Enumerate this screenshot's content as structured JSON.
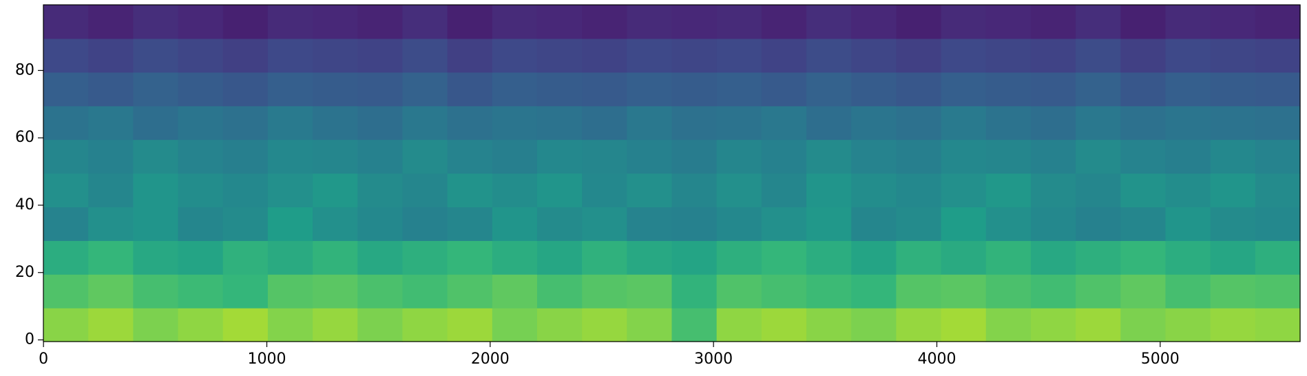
{
  "chart_data": {
    "type": "heatmap",
    "colormap": "viridis",
    "xlim": [
      -0.5,
      5626.5
    ],
    "ylim": [
      -0.5,
      99.5
    ],
    "xticks": [
      0,
      1000,
      2000,
      3000,
      4000,
      5000
    ],
    "yticks": [
      0,
      20,
      40,
      60,
      80
    ],
    "z": [
      [
        0.82,
        0.85,
        0.8,
        0.83,
        0.86,
        0.81,
        0.84,
        0.8,
        0.83,
        0.85,
        0.79,
        0.82,
        0.84,
        0.81,
        0.7,
        0.83,
        0.85,
        0.82,
        0.8,
        0.84,
        0.86,
        0.81,
        0.83,
        0.85,
        0.8,
        0.82,
        0.84,
        0.83
      ],
      [
        0.72,
        0.75,
        0.7,
        0.68,
        0.66,
        0.73,
        0.74,
        0.71,
        0.69,
        0.72,
        0.75,
        0.7,
        0.73,
        0.74,
        0.65,
        0.72,
        0.7,
        0.68,
        0.66,
        0.73,
        0.74,
        0.71,
        0.69,
        0.72,
        0.75,
        0.7,
        0.73,
        0.72
      ],
      [
        0.62,
        0.66,
        0.6,
        0.58,
        0.64,
        0.61,
        0.65,
        0.6,
        0.63,
        0.66,
        0.62,
        0.59,
        0.64,
        0.6,
        0.58,
        0.63,
        0.66,
        0.62,
        0.58,
        0.64,
        0.61,
        0.65,
        0.6,
        0.63,
        0.66,
        0.62,
        0.59,
        0.63
      ],
      [
        0.45,
        0.5,
        0.52,
        0.46,
        0.48,
        0.55,
        0.5,
        0.47,
        0.44,
        0.46,
        0.52,
        0.48,
        0.5,
        0.45,
        0.44,
        0.47,
        0.5,
        0.53,
        0.46,
        0.48,
        0.55,
        0.5,
        0.47,
        0.44,
        0.46,
        0.52,
        0.48,
        0.47
      ],
      [
        0.5,
        0.46,
        0.52,
        0.49,
        0.47,
        0.5,
        0.53,
        0.48,
        0.46,
        0.51,
        0.49,
        0.52,
        0.47,
        0.5,
        0.46,
        0.5,
        0.46,
        0.52,
        0.49,
        0.47,
        0.5,
        0.53,
        0.48,
        0.46,
        0.51,
        0.49,
        0.52,
        0.48
      ],
      [
        0.46,
        0.44,
        0.48,
        0.45,
        0.43,
        0.47,
        0.46,
        0.44,
        0.48,
        0.45,
        0.43,
        0.47,
        0.46,
        0.44,
        0.42,
        0.46,
        0.44,
        0.48,
        0.45,
        0.43,
        0.47,
        0.46,
        0.44,
        0.48,
        0.45,
        0.43,
        0.47,
        0.45
      ],
      [
        0.38,
        0.4,
        0.36,
        0.39,
        0.37,
        0.41,
        0.38,
        0.36,
        0.4,
        0.37,
        0.39,
        0.38,
        0.36,
        0.4,
        0.37,
        0.38,
        0.4,
        0.36,
        0.39,
        0.37,
        0.41,
        0.38,
        0.36,
        0.4,
        0.37,
        0.39,
        0.38,
        0.37
      ],
      [
        0.3,
        0.28,
        0.31,
        0.29,
        0.27,
        0.3,
        0.29,
        0.28,
        0.31,
        0.27,
        0.3,
        0.29,
        0.28,
        0.3,
        0.29,
        0.3,
        0.28,
        0.31,
        0.29,
        0.27,
        0.3,
        0.29,
        0.28,
        0.31,
        0.27,
        0.3,
        0.29,
        0.28
      ],
      [
        0.22,
        0.2,
        0.23,
        0.21,
        0.19,
        0.22,
        0.21,
        0.2,
        0.23,
        0.19,
        0.22,
        0.21,
        0.2,
        0.22,
        0.21,
        0.22,
        0.2,
        0.23,
        0.21,
        0.19,
        0.22,
        0.21,
        0.2,
        0.23,
        0.19,
        0.22,
        0.21,
        0.2
      ],
      [
        0.12,
        0.1,
        0.13,
        0.11,
        0.09,
        0.12,
        0.11,
        0.1,
        0.13,
        0.09,
        0.12,
        0.11,
        0.1,
        0.12,
        0.11,
        0.12,
        0.1,
        0.13,
        0.11,
        0.09,
        0.12,
        0.11,
        0.1,
        0.13,
        0.09,
        0.12,
        0.11,
        0.1
      ]
    ]
  }
}
